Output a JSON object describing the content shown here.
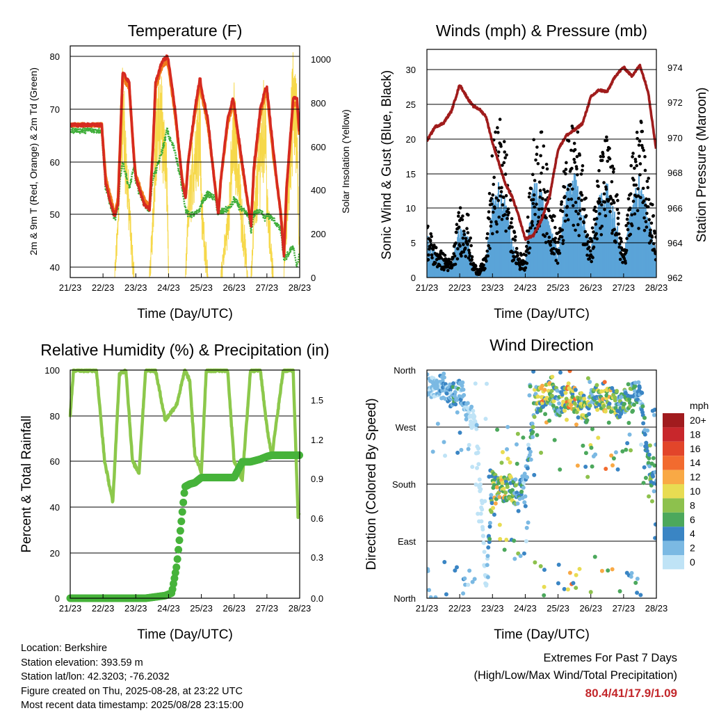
{
  "x_ticks": [
    "21/23",
    "22/23",
    "23/23",
    "24/23",
    "25/23",
    "26/23",
    "27/23",
    "28/23"
  ],
  "x_label": "Time (Day/UTC)",
  "colors": {
    "temp_2m": "#d62a20",
    "temp_9m": "#f07a1a",
    "dewpoint": "#3fae3a",
    "solar": "#f6d84a",
    "wind": "#5ba4d8",
    "gust": "#000000",
    "pressure": "#a01c1c",
    "rh": "#8cc84b",
    "precip": "#46b33a"
  },
  "temperature": {
    "title": "Temperature (F)",
    "ylabel_left": "2m & 9m T (Red, Orange) & 2m Td (Green)",
    "ylabel_right": "Solar Insolation (Yellow)",
    "yticks_left": [
      "80",
      "70",
      "60",
      "50",
      "40"
    ],
    "yticks_right": [
      "1000",
      "800",
      "600",
      "400",
      "200",
      "0"
    ]
  },
  "winds": {
    "title": "Winds (mph) & Pressure (mb)",
    "ylabel_left": "Sonic Wind & Gust (Blue, Black)",
    "ylabel_right": "Station Pressure (Maroon)",
    "yticks_left": [
      "30",
      "25",
      "20",
      "15",
      "10",
      "5",
      "0"
    ],
    "yticks_right": [
      "974",
      "972",
      "970",
      "968",
      "966",
      "964",
      "962"
    ]
  },
  "humidity": {
    "title": "Relative Humidity (%) & Precipitation (in)",
    "ylabel_left": "Percent & Total Rainfall",
    "yticks_left": [
      "100",
      "80",
      "60",
      "40",
      "20",
      "0"
    ],
    "yticks_right": [
      "1.5",
      "1.2",
      "0.9",
      "0.6",
      "0.3",
      "0.0"
    ]
  },
  "direction": {
    "title": "Wind Direction",
    "ylabel_left": "Direction (Colored By Speed)",
    "yticks_left": [
      "North",
      "West",
      "South",
      "East",
      "North"
    ],
    "colorbar_title": "mph",
    "colorbar_labels": [
      "20+",
      "18",
      "16",
      "14",
      "12",
      "10",
      "8",
      "6",
      "4",
      "2",
      "0"
    ],
    "colorbar_colors": [
      "#a11b1e",
      "#c8272c",
      "#e2452a",
      "#f26b2f",
      "#f9a945",
      "#e8dc52",
      "#8dc14d",
      "#4ca85c",
      "#3a85c4",
      "#7bb9e3",
      "#bfe3f6"
    ]
  },
  "chart_data": [
    {
      "type": "line",
      "title": "Temperature (F)",
      "xlabel": "Time (Day/UTC)",
      "ylabel": "2m & 9m T (Red, Orange) & 2m Td (Green)",
      "ylabel_right": "Solar Insolation (Yellow)",
      "ylim": [
        38,
        82
      ],
      "ylim_right": [
        0,
        1040
      ],
      "x": [
        21.96,
        22.08,
        22.2,
        22.36,
        22.46,
        22.52,
        22.6,
        22.8,
        22.95,
        23.0,
        23.25,
        23.42,
        23.52,
        23.6,
        23.8,
        23.96,
        24.0,
        24.2,
        24.42,
        24.52,
        24.6,
        24.8,
        24.96,
        25.0,
        25.2,
        25.42,
        25.52,
        25.6,
        25.8,
        25.96,
        26.0,
        26.2,
        26.42,
        26.52,
        26.6,
        26.8,
        26.96,
        27.0,
        27.2,
        27.42,
        27.52,
        27.6,
        27.8,
        27.92,
        28.0
      ],
      "series": [
        {
          "name": "2m T",
          "values": [
            67,
            56,
            53,
            49.5,
            52,
            63,
            77,
            75,
            60,
            57,
            52,
            51,
            62,
            75,
            79,
            80,
            79,
            70,
            56,
            53,
            60,
            70,
            76,
            74,
            68,
            55,
            50,
            57,
            68,
            72,
            71,
            62,
            52,
            48,
            59,
            70,
            74,
            74,
            62,
            50,
            42,
            55,
            72,
            72,
            65
          ]
        },
        {
          "name": "9m T",
          "values": [
            67,
            57,
            54,
            50,
            53,
            63,
            76,
            74,
            60.5,
            57.5,
            53,
            51.5,
            62,
            74,
            78,
            79,
            78,
            69,
            56.5,
            53.5,
            60,
            69,
            75,
            73,
            67,
            55.5,
            50.5,
            57,
            67,
            71,
            70,
            61,
            52,
            48.5,
            58,
            69,
            73,
            73,
            61,
            50.5,
            43,
            55,
            71,
            71,
            64
          ]
        },
        {
          "name": "2m Td",
          "values": [
            66,
            55,
            52.5,
            49,
            51,
            57,
            60,
            55,
            59,
            56,
            52,
            51,
            57,
            58,
            62,
            66,
            65,
            62,
            55,
            51,
            50,
            50,
            51,
            52,
            54,
            53,
            50,
            50.5,
            51,
            52,
            53,
            51,
            50,
            47,
            50,
            51,
            49,
            50,
            49,
            47,
            41.5,
            42,
            44,
            40,
            43
          ]
        },
        {
          "name": "Solar Insolation",
          "values": [
            0,
            0,
            0,
            0,
            300,
            750,
            960,
            350,
            0,
            0,
            0,
            0,
            300,
            800,
            900,
            500,
            0,
            0,
            0,
            0,
            350,
            700,
            900,
            400,
            0,
            0,
            0,
            0,
            300,
            700,
            850,
            400,
            0,
            0,
            300,
            700,
            900,
            400,
            0,
            0,
            0,
            300,
            1000,
            800,
            0
          ]
        }
      ]
    },
    {
      "type": "line",
      "title": "Winds (mph) & Pressure (mb)",
      "xlabel": "Time (Day/UTC)",
      "ylabel": "Sonic Wind & Gust (Blue, Black)",
      "ylabel_right": "Station Pressure (Maroon)",
      "ylim": [
        0,
        33
      ],
      "ylim_right": [
        962,
        974.9
      ],
      "x": [
        21.0,
        21.25,
        21.5,
        21.75,
        22.0,
        22.25,
        22.4,
        22.6,
        22.8,
        23.0,
        23.2,
        23.4,
        23.6,
        23.8,
        24.0,
        24.25,
        24.5,
        24.75,
        25.0,
        25.25,
        25.5,
        25.75,
        26.0,
        26.25,
        26.5,
        26.75,
        27.0,
        27.25,
        27.5,
        27.75,
        28.0
      ],
      "series": [
        {
          "name": "Sonic Wind",
          "values": [
            5,
            3,
            2,
            1.5,
            6,
            5,
            1,
            0,
            2,
            9,
            11,
            9,
            4,
            2,
            2,
            11,
            10,
            6,
            3,
            10,
            12,
            8,
            3,
            9,
            11,
            7,
            2,
            9,
            12,
            7,
            3
          ]
        },
        {
          "name": "Gust",
          "values": [
            7,
            4,
            3,
            2,
            9,
            8,
            2,
            1,
            3,
            16,
            20,
            17,
            7,
            3,
            3,
            17,
            18,
            11,
            5,
            16,
            20,
            14,
            5,
            14,
            18,
            12,
            3,
            15,
            20,
            13,
            5
          ]
        },
        {
          "name": "Station Pressure",
          "values": [
            969.8,
            970.6,
            970.8,
            971.5,
            973.0,
            972.2,
            971.8,
            971.6,
            971.2,
            969.7,
            968.5,
            967.3,
            966.6,
            965.5,
            964.2,
            964.4,
            965.3,
            966.7,
            969.3,
            970.1,
            970.4,
            970.8,
            972.3,
            972.7,
            972.6,
            973.5,
            974.0,
            973.5,
            974.1,
            972.6,
            969.2
          ]
        }
      ]
    },
    {
      "type": "line",
      "title": "Relative Humidity (%) & Precipitation (in)",
      "xlabel": "Time (Day/UTC)",
      "ylabel": "Percent & Total Rainfall",
      "ylim": [
        0,
        100
      ],
      "ylim_right": [
        0,
        1.75
      ],
      "x": [
        21.0,
        21.1,
        21.5,
        21.8,
        22.05,
        22.3,
        22.5,
        22.7,
        22.9,
        23.1,
        23.3,
        23.6,
        23.9,
        24.1,
        24.25,
        24.5,
        24.65,
        24.8,
        25.0,
        25.15,
        25.5,
        25.8,
        26.0,
        26.25,
        26.5,
        26.8,
        27.0,
        27.15,
        27.5,
        27.8,
        27.95,
        28.0
      ],
      "series": [
        {
          "name": "Relative Humidity",
          "values": [
            80,
            100,
            100,
            100,
            60,
            42,
            98,
            100,
            60,
            55,
            100,
            100,
            78,
            82,
            85,
            100,
            95,
            63,
            55,
            100,
            100,
            100,
            60,
            52,
            100,
            100,
            75,
            62,
            100,
            100,
            36,
            38
          ]
        },
        {
          "name": "Total Rainfall",
          "values": [
            0,
            0,
            0,
            0,
            0,
            0,
            0,
            0,
            0,
            0,
            0,
            0.01,
            0.02,
            0.04,
            0.25,
            0.85,
            0.87,
            0.88,
            0.92,
            0.92,
            0.92,
            0.92,
            0.92,
            1.04,
            1.04,
            1.06,
            1.08,
            1.09,
            1.09,
            1.09,
            1.09,
            1.09
          ]
        }
      ]
    },
    {
      "type": "scatter",
      "title": "Wind Direction",
      "xlabel": "Time (Day/UTC)",
      "ylabel": "Direction (Colored By Speed)",
      "colorbar_unit": "mph",
      "x": [
        21.2,
        21.5,
        21.8,
        22.0,
        22.2,
        22.5,
        22.8,
        23.0,
        23.3,
        23.5,
        23.8,
        24.0,
        24.3,
        24.5,
        24.8,
        25.0,
        25.3,
        25.6,
        25.9,
        26.1,
        26.4,
        26.7,
        26.9,
        27.2,
        27.5,
        27.8,
        28.0
      ],
      "series": [
        {
          "name": "Direction (deg)",
          "values": [
            335,
            330,
            320,
            325,
            300,
            280,
            15,
            180,
            170,
            175,
            165,
            180,
            310,
            315,
            330,
            305,
            320,
            310,
            295,
            320,
            310,
            315,
            300,
            320,
            325,
            200,
            190
          ]
        },
        {
          "name": "Speed (mph)",
          "values": [
            3,
            4,
            6,
            5,
            3,
            2,
            1,
            10,
            12,
            9,
            8,
            4,
            9,
            12,
            11,
            6,
            14,
            12,
            10,
            8,
            13,
            11,
            7,
            9,
            5,
            8,
            6
          ]
        }
      ]
    }
  ],
  "info": {
    "location": "Location: Berkshire",
    "elevation": "Station elevation: 393.59 m",
    "latlon": "Station lat/lon: 42.3203; -76.2032",
    "created": "Figure created on Thu, 2025-08-28, at 23:22 UTC",
    "recent": "Most recent data timestamp: 2025/08/28 23:15:00"
  },
  "extremes": {
    "heading": "Extremes For Past 7 Days",
    "subheading": "(High/Low/Max Wind/Total Precipitation)",
    "values": "80.4/41/17.9/1.09"
  }
}
